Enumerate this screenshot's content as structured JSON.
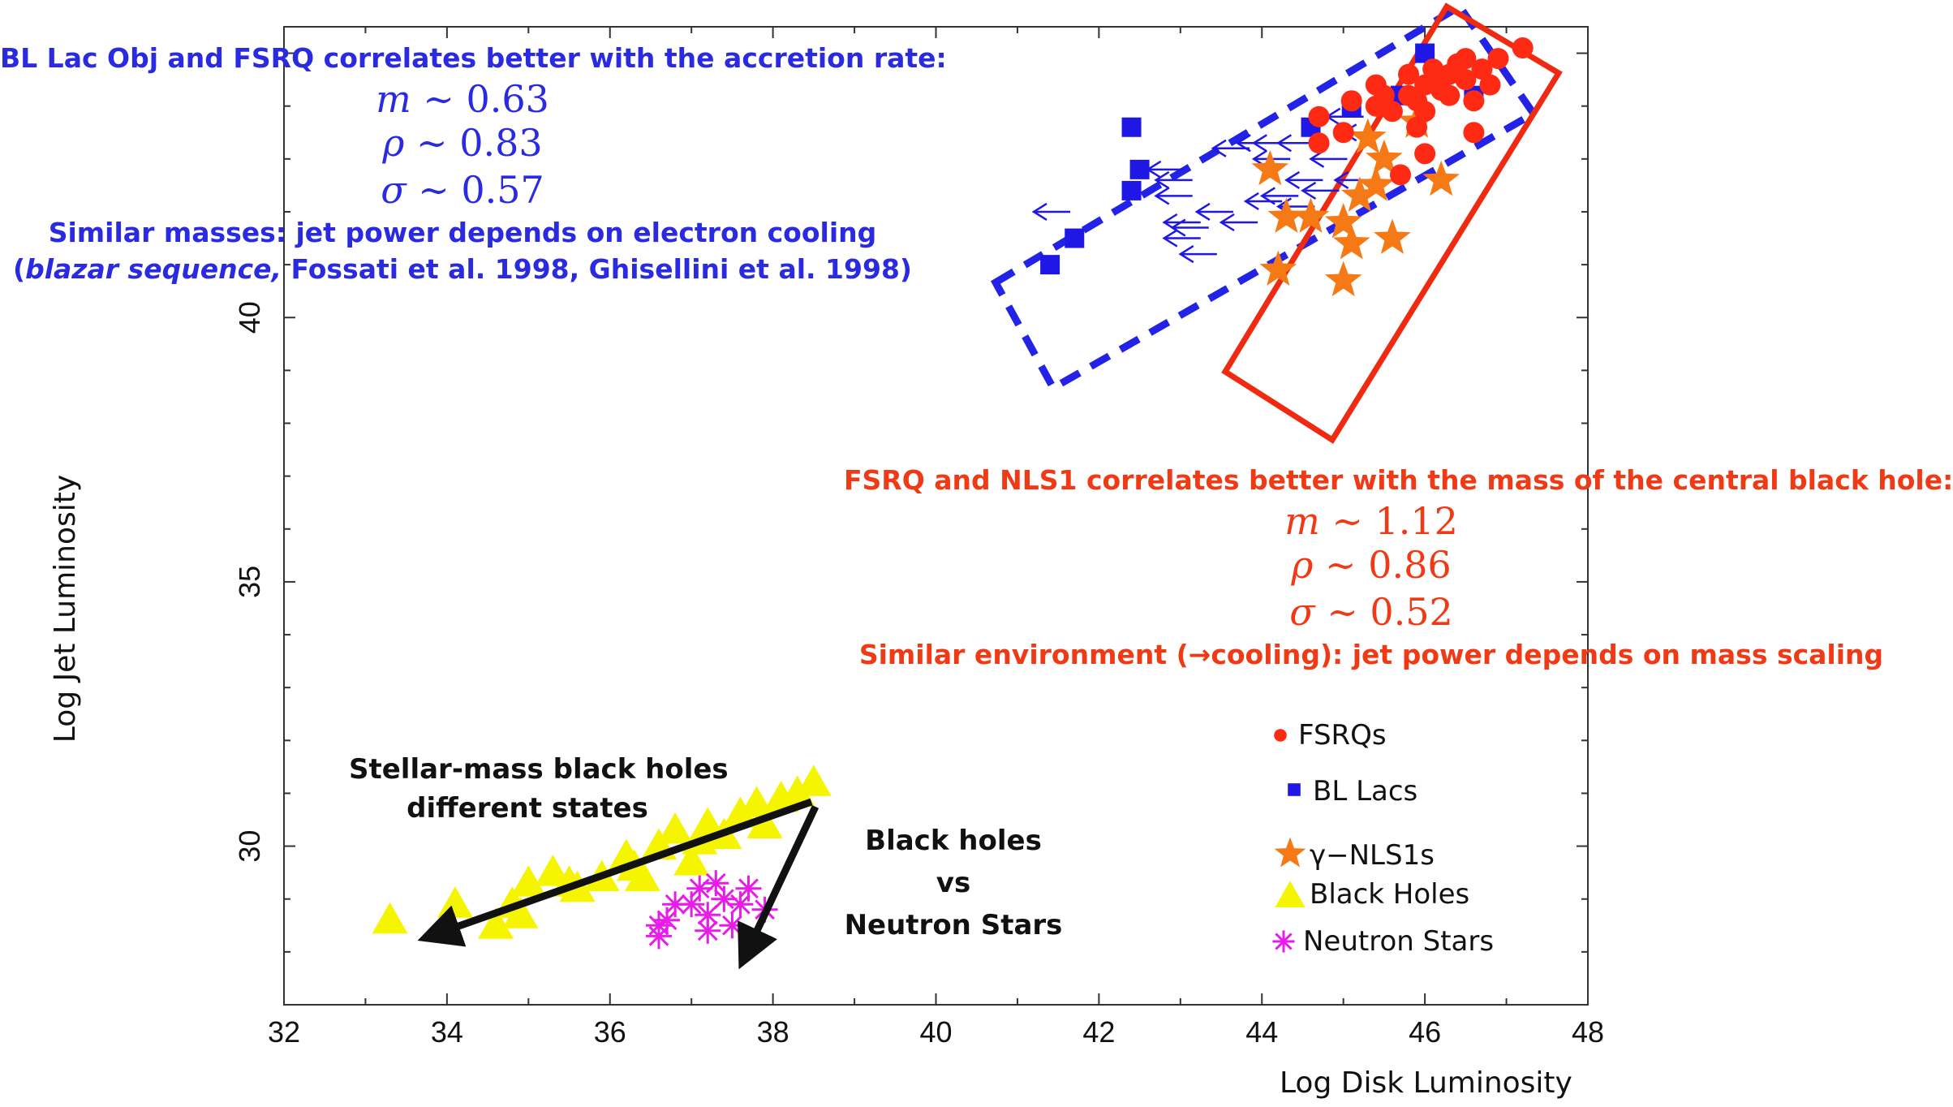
{
  "chart_data": {
    "type": "scatter",
    "xlabel": "Log Disk Luminosity",
    "ylabel": "Log Jet Luminosity",
    "xlim": [
      32,
      48
    ],
    "ylim": [
      27,
      45.5
    ],
    "xticks": [
      "32",
      "34",
      "36",
      "38",
      "40",
      "42",
      "44",
      "46",
      "48"
    ],
    "yticks": [
      "30",
      "35",
      "40"
    ],
    "series": [
      {
        "name": "FSRQs",
        "marker": "circle",
        "color": "#ff2a14",
        "points": [
          [
            44.7,
            43.8
          ],
          [
            44.7,
            43.3
          ],
          [
            45.1,
            44.1
          ],
          [
            45.0,
            43.5
          ],
          [
            45.4,
            44.0
          ],
          [
            45.4,
            44.4
          ],
          [
            45.5,
            44.2
          ],
          [
            45.6,
            43.9
          ],
          [
            45.8,
            44.6
          ],
          [
            45.8,
            44.2
          ],
          [
            45.9,
            43.6
          ],
          [
            46.0,
            43.9
          ],
          [
            46.0,
            44.4
          ],
          [
            46.1,
            44.7
          ],
          [
            46.2,
            44.3
          ],
          [
            46.3,
            44.6
          ],
          [
            46.3,
            44.2
          ],
          [
            46.4,
            44.8
          ],
          [
            46.5,
            44.5
          ],
          [
            46.6,
            44.1
          ],
          [
            46.7,
            44.7
          ],
          [
            46.8,
            44.4
          ],
          [
            46.9,
            44.9
          ],
          [
            47.2,
            45.1
          ],
          [
            46.0,
            43.1
          ],
          [
            45.7,
            42.7
          ],
          [
            46.6,
            43.5
          ],
          [
            45.9,
            44.1
          ],
          [
            46.1,
            44.5
          ],
          [
            46.5,
            44.9
          ]
        ]
      },
      {
        "name": "BL Lacs",
        "marker": "square",
        "color": "#1f17e6",
        "points": [
          [
            42.4,
            43.6
          ],
          [
            42.5,
            42.8
          ],
          [
            42.4,
            42.4
          ],
          [
            41.7,
            41.5
          ],
          [
            41.4,
            41.0
          ],
          [
            44.6,
            43.6
          ],
          [
            45.1,
            44.0
          ],
          [
            45.7,
            44.2
          ],
          [
            46.0,
            45.0
          ],
          [
            46.4,
            44.7
          ],
          [
            46.6,
            44.2
          ]
        ]
      },
      {
        "name": "γ−NLS1s",
        "marker": "star",
        "color": "#f57a16",
        "points": [
          [
            44.1,
            42.8
          ],
          [
            44.3,
            41.9
          ],
          [
            44.6,
            41.9
          ],
          [
            45.0,
            41.8
          ],
          [
            45.2,
            42.3
          ],
          [
            45.4,
            42.5
          ],
          [
            45.6,
            41.5
          ],
          [
            45.1,
            41.4
          ],
          [
            44.2,
            40.9
          ],
          [
            45.0,
            40.7
          ],
          [
            45.3,
            43.4
          ],
          [
            45.5,
            43.0
          ],
          [
            45.9,
            43.7
          ],
          [
            46.2,
            42.6
          ]
        ]
      },
      {
        "name": "Black Holes",
        "marker": "triangle",
        "color": "#f5f500",
        "points": [
          [
            33.3,
            28.6
          ],
          [
            34.1,
            28.9
          ],
          [
            34.6,
            28.5
          ],
          [
            34.8,
            28.9
          ],
          [
            35.0,
            29.3
          ],
          [
            35.3,
            29.5
          ],
          [
            35.6,
            29.2
          ],
          [
            35.9,
            29.4
          ],
          [
            36.2,
            29.8
          ],
          [
            36.4,
            29.4
          ],
          [
            36.6,
            30.0
          ],
          [
            36.8,
            30.3
          ],
          [
            37.0,
            29.7
          ],
          [
            37.2,
            30.4
          ],
          [
            37.4,
            30.2
          ],
          [
            37.6,
            30.6
          ],
          [
            37.8,
            30.8
          ],
          [
            37.9,
            30.4
          ],
          [
            38.1,
            30.9
          ],
          [
            38.3,
            31.0
          ],
          [
            38.5,
            31.2
          ],
          [
            37.1,
            30.1
          ],
          [
            36.3,
            29.6
          ],
          [
            35.5,
            29.3
          ],
          [
            34.9,
            28.7
          ]
        ]
      },
      {
        "name": "Neutron Stars",
        "marker": "asterisk",
        "color": "#e81ce8",
        "points": [
          [
            36.6,
            28.3
          ],
          [
            36.7,
            28.6
          ],
          [
            36.8,
            28.9
          ],
          [
            37.0,
            28.9
          ],
          [
            37.1,
            29.2
          ],
          [
            37.2,
            28.7
          ],
          [
            37.3,
            29.3
          ],
          [
            37.4,
            29.0
          ],
          [
            37.6,
            28.9
          ],
          [
            37.7,
            29.2
          ],
          [
            37.9,
            28.8
          ],
          [
            36.6,
            28.5
          ],
          [
            37.2,
            28.4
          ],
          [
            37.5,
            28.5
          ]
        ]
      }
    ],
    "upper_limits": [
      [
        41.2,
        42.0
      ],
      [
        42.6,
        42.8
      ],
      [
        42.7,
        42.6
      ],
      [
        42.7,
        42.3
      ],
      [
        42.8,
        41.5
      ],
      [
        42.8,
        41.8
      ],
      [
        42.9,
        41.7
      ],
      [
        43.2,
        42.0
      ],
      [
        43.4,
        43.2
      ],
      [
        43.8,
        42.2
      ],
      [
        43.5,
        41.8
      ],
      [
        43.7,
        43.3
      ],
      [
        43.9,
        43.3
      ],
      [
        43.9,
        43.0
      ],
      [
        44.2,
        42.1
      ],
      [
        44.0,
        42.3
      ],
      [
        44.2,
        43.3
      ],
      [
        44.5,
        42.4
      ],
      [
        44.8,
        43.8
      ],
      [
        44.6,
        43.0
      ],
      [
        44.9,
        42.6
      ],
      [
        45.0,
        43.5
      ],
      [
        43.0,
        41.2
      ],
      [
        44.3,
        42.6
      ]
    ]
  },
  "annotations": {
    "blue_block": {
      "line1": "BL Lac Obj and FSRQ correlates better with the accretion rate:",
      "m_sym": "m",
      "m_val": " ∼ 0.63",
      "rho_sym": "ρ",
      "rho_val": " ∼ 0.83",
      "sigma_sym": "σ",
      "sigma_val": " ∼ 0.57",
      "line5": "Similar masses: jet power depends on electron cooling",
      "line6_open": "(",
      "line6_italic": "blazar sequence,",
      "line6_rest": " Fossati et al. 1998, Ghisellini et al. 1998)"
    },
    "red_block": {
      "line1": "FSRQ and NLS1 correlates better with the mass of the central black hole:",
      "m_sym": "m",
      "m_val": " ∼ 1.12",
      "rho_sym": "ρ",
      "rho_val": " ∼ 0.86",
      "sigma_sym": "σ",
      "sigma_val": " ∼ 0.52",
      "line5": "Similar environment (→cooling): jet power depends on mass scaling"
    },
    "stellar_line1": "Stellar-mass black holes",
    "stellar_line2": "different states",
    "bh_line1": "Black holes",
    "bh_line2": "vs",
    "bh_line3": "Neutron Stars"
  },
  "legend": [
    {
      "label": "FSRQs",
      "marker": "circle"
    },
    {
      "label": "BL Lacs",
      "marker": "square"
    },
    {
      "label": "γ−NLS1s",
      "marker": "star"
    },
    {
      "label": "Black Holes",
      "marker": "triangle"
    },
    {
      "label": "Neutron Stars",
      "marker": "asterisk"
    }
  ],
  "colors": {
    "fsrq": "#ff2a14",
    "bllac": "#1f17e6",
    "nls1": "#f57a16",
    "bh": "#f5f500",
    "ns": "#e81ce8",
    "blue_text": "#2a2ae0",
    "red_text": "#f03a15"
  }
}
